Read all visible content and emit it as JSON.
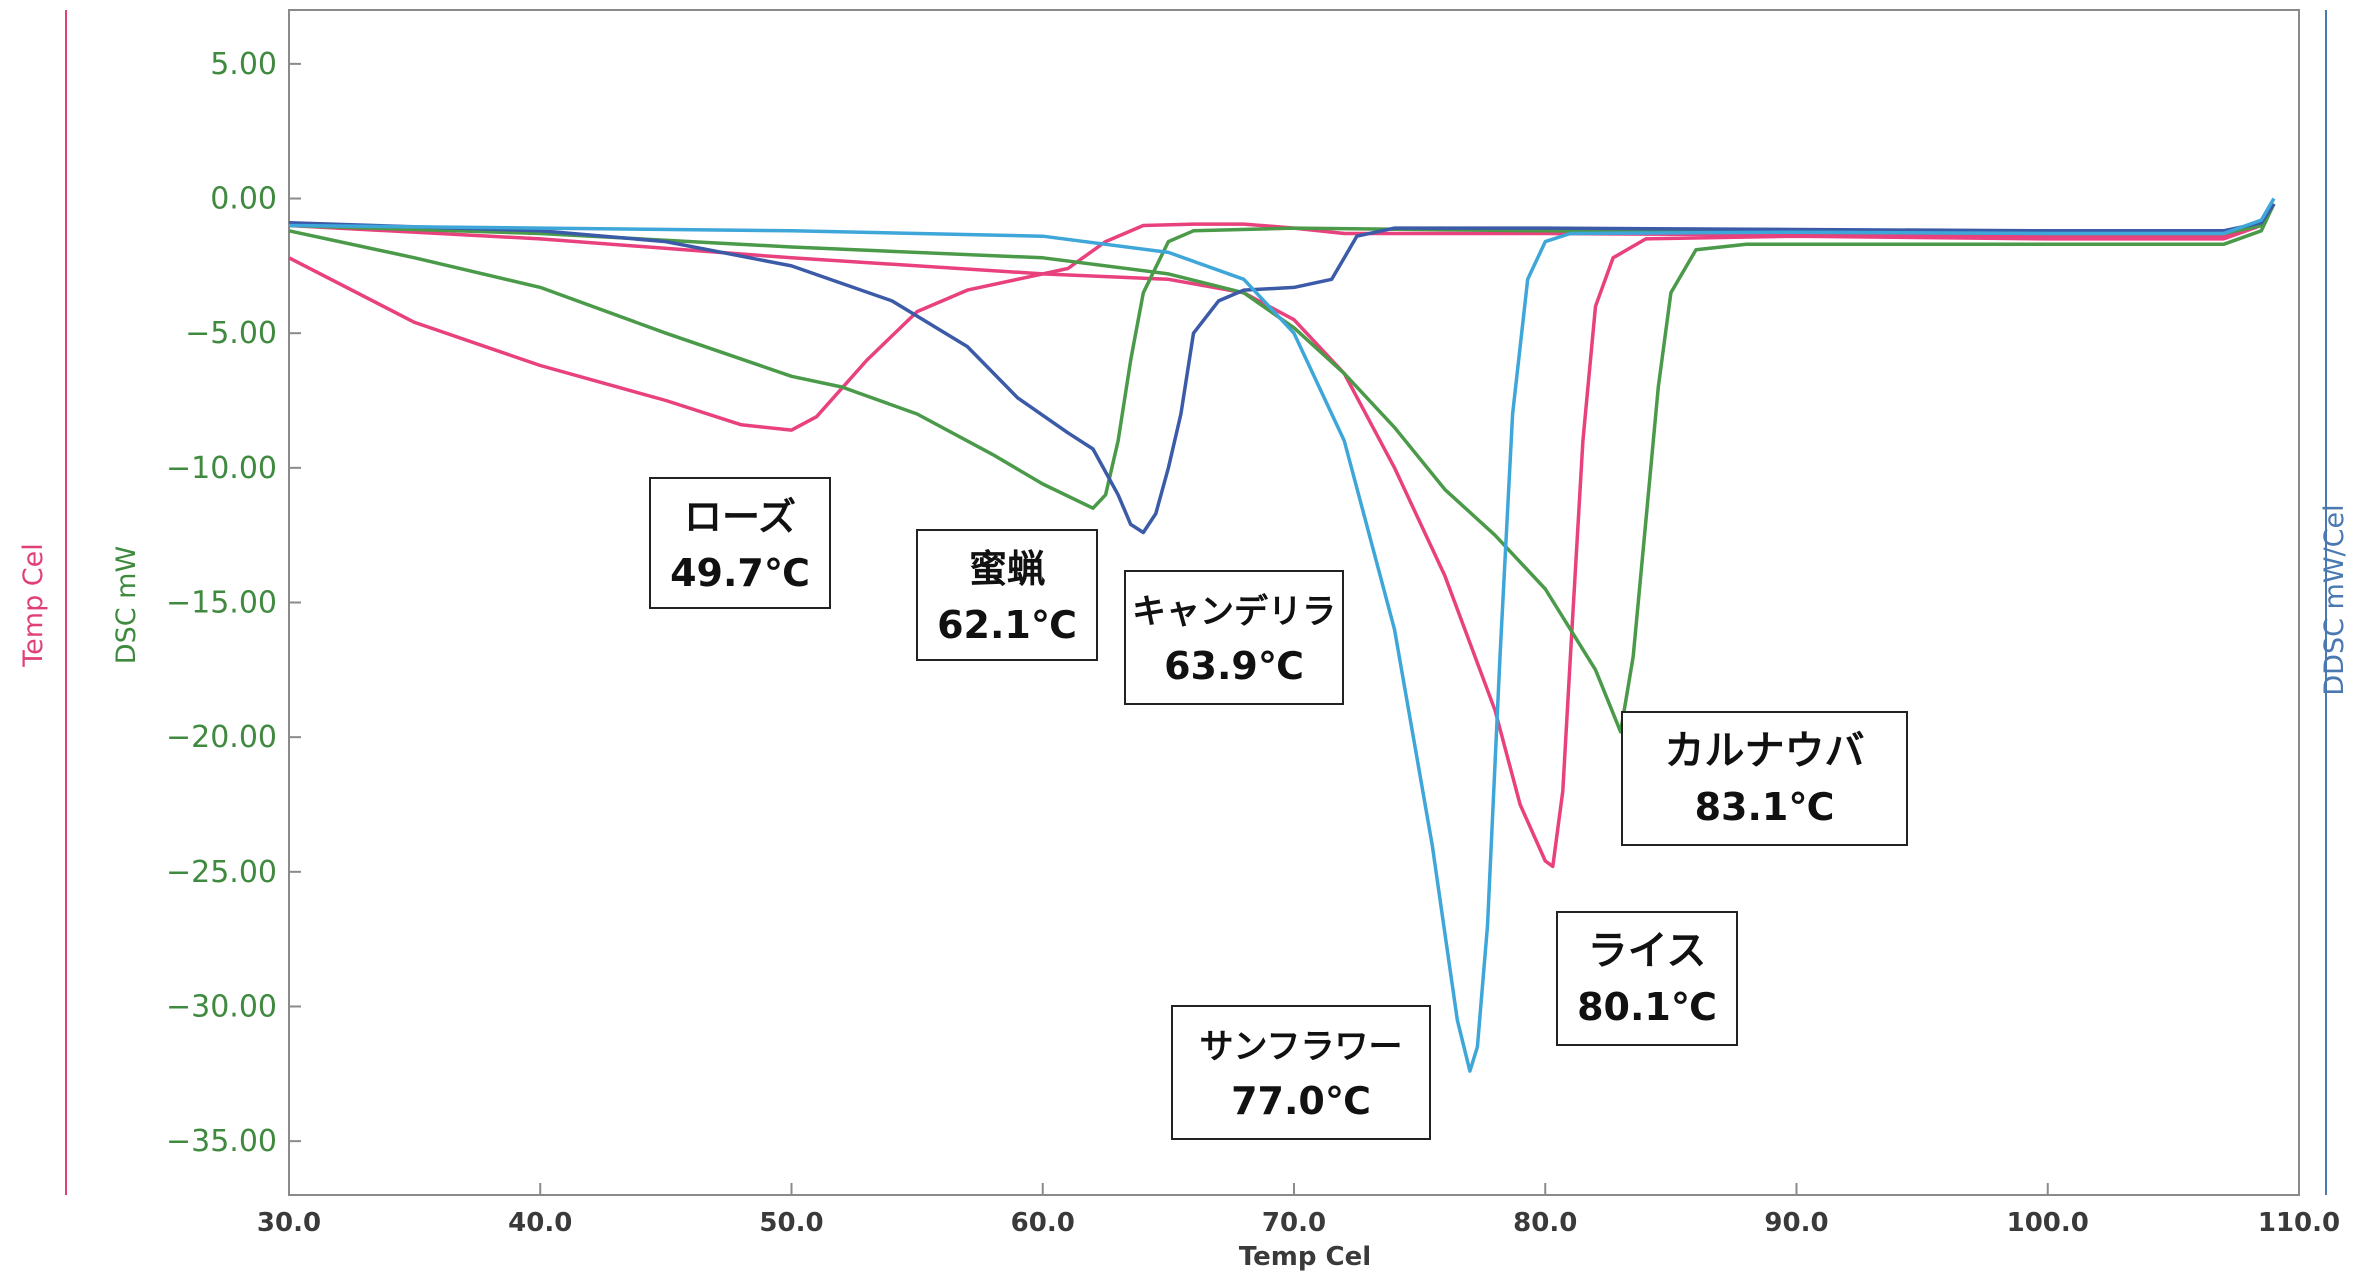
{
  "chart_data": {
    "type": "line",
    "xlabel": "Temp Cel",
    "ylabel_left_outer": "Temp Cel",
    "ylabel_left": "DSC mW",
    "ylabel_right": "DDSC mW/Cel",
    "xlim": [
      30,
      110
    ],
    "ylim": [
      -37,
      7
    ],
    "x_ticks": [
      "30.0",
      "40.0",
      "50.0",
      "60.0",
      "70.0",
      "80.0",
      "90.0",
      "100.0",
      "110.0"
    ],
    "y_ticks": [
      "5.00",
      "0.00",
      "-5.00",
      "-10.00",
      "-15.00",
      "-20.00",
      "-25.00",
      "-30.00",
      "-35.00"
    ],
    "grid": false,
    "legend": "none",
    "colors": {
      "ylabel_left_outer": "#e0407a",
      "ylabel_left": "#3f8a3f",
      "ylabel_right": "#4a78b0"
    },
    "series": [
      {
        "color": "#e8417d",
        "points": [
          [
            30,
            -2.2
          ],
          [
            35,
            -4.6
          ],
          [
            40,
            -6.2
          ],
          [
            45,
            -7.5
          ],
          [
            48,
            -8.4
          ],
          [
            50,
            -8.6
          ],
          [
            51,
            -8.1
          ],
          [
            53,
            -6.0
          ],
          [
            55,
            -4.2
          ],
          [
            57,
            -3.4
          ],
          [
            59,
            -3.0
          ],
          [
            61,
            -2.6
          ],
          [
            62.5,
            -1.6
          ],
          [
            64,
            -1.0
          ],
          [
            66,
            -0.95
          ],
          [
            68,
            -0.95
          ],
          [
            70,
            -1.1
          ],
          [
            72,
            -1.3
          ],
          [
            80,
            -1.3
          ],
          [
            90,
            -1.35
          ],
          [
            100,
            -1.4
          ],
          [
            107,
            -1.4
          ],
          [
            108.5,
            -1.0
          ],
          [
            109,
            -0.2
          ]
        ]
      },
      {
        "color": "#e8417d",
        "points": [
          [
            30,
            -1.0
          ],
          [
            40,
            -1.5
          ],
          [
            50,
            -2.2
          ],
          [
            60,
            -2.8
          ],
          [
            65,
            -3.0
          ],
          [
            68,
            -3.5
          ],
          [
            70,
            -4.5
          ],
          [
            72,
            -6.5
          ],
          [
            74,
            -10.0
          ],
          [
            76,
            -14.0
          ],
          [
            78,
            -19.0
          ],
          [
            79,
            -22.5
          ],
          [
            80,
            -24.6
          ],
          [
            80.3,
            -24.8
          ],
          [
            80.7,
            -22.0
          ],
          [
            81,
            -17.0
          ],
          [
            81.5,
            -9.0
          ],
          [
            82,
            -4.0
          ],
          [
            82.7,
            -2.2
          ],
          [
            84,
            -1.5
          ],
          [
            90,
            -1.4
          ],
          [
            100,
            -1.5
          ],
          [
            107,
            -1.5
          ],
          [
            108.5,
            -1.0
          ],
          [
            109,
            -0.2
          ]
        ]
      },
      {
        "color": "#4a9a4a",
        "points": [
          [
            30,
            -1.2
          ],
          [
            35,
            -2.2
          ],
          [
            40,
            -3.3
          ],
          [
            45,
            -5.0
          ],
          [
            50,
            -6.6
          ],
          [
            52,
            -7.0
          ],
          [
            55,
            -8.0
          ],
          [
            58,
            -9.5
          ],
          [
            60,
            -10.6
          ],
          [
            62,
            -11.5
          ],
          [
            62.5,
            -11.0
          ],
          [
            63,
            -9.0
          ],
          [
            63.5,
            -6.0
          ],
          [
            64,
            -3.5
          ],
          [
            65,
            -1.6
          ],
          [
            66,
            -1.2
          ],
          [
            70,
            -1.1
          ],
          [
            80,
            -1.2
          ],
          [
            90,
            -1.25
          ],
          [
            100,
            -1.3
          ],
          [
            107,
            -1.3
          ],
          [
            108.5,
            -1.0
          ],
          [
            109,
            -0.2
          ]
        ]
      },
      {
        "color": "#4a9a4a",
        "points": [
          [
            30,
            -1.0
          ],
          [
            40,
            -1.3
          ],
          [
            50,
            -1.8
          ],
          [
            60,
            -2.2
          ],
          [
            65,
            -2.8
          ],
          [
            68,
            -3.5
          ],
          [
            70,
            -4.8
          ],
          [
            72,
            -6.5
          ],
          [
            74,
            -8.5
          ],
          [
            76,
            -10.8
          ],
          [
            78,
            -12.5
          ],
          [
            80,
            -14.5
          ],
          [
            82,
            -17.5
          ],
          [
            83,
            -19.8
          ],
          [
            83.5,
            -17.0
          ],
          [
            84,
            -12.0
          ],
          [
            84.5,
            -7.0
          ],
          [
            85,
            -3.5
          ],
          [
            86,
            -1.9
          ],
          [
            88,
            -1.7
          ],
          [
            95,
            -1.7
          ],
          [
            100,
            -1.7
          ],
          [
            107,
            -1.7
          ],
          [
            108.5,
            -1.2
          ],
          [
            109,
            -0.2
          ]
        ]
      },
      {
        "color": "#3b5aa8",
        "points": [
          [
            30,
            -0.9
          ],
          [
            40,
            -1.2
          ],
          [
            45,
            -1.6
          ],
          [
            50,
            -2.5
          ],
          [
            54,
            -3.8
          ],
          [
            57,
            -5.5
          ],
          [
            59,
            -7.4
          ],
          [
            61,
            -8.7
          ],
          [
            62,
            -9.3
          ],
          [
            63,
            -11.0
          ],
          [
            63.5,
            -12.1
          ],
          [
            64,
            -12.4
          ],
          [
            64.5,
            -11.7
          ],
          [
            65,
            -10.0
          ],
          [
            65.5,
            -8.0
          ],
          [
            66,
            -5.0
          ],
          [
            67,
            -3.8
          ],
          [
            68,
            -3.4
          ],
          [
            70,
            -3.3
          ],
          [
            71.5,
            -3.0
          ],
          [
            72,
            -2.2
          ],
          [
            72.5,
            -1.4
          ],
          [
            74,
            -1.1
          ],
          [
            80,
            -1.1
          ],
          [
            90,
            -1.15
          ],
          [
            100,
            -1.2
          ],
          [
            107,
            -1.2
          ],
          [
            108.5,
            -0.9
          ],
          [
            109,
            -0.2
          ]
        ]
      },
      {
        "color": "#3ea6d8",
        "points": [
          [
            30,
            -1.0
          ],
          [
            40,
            -1.1
          ],
          [
            50,
            -1.2
          ],
          [
            60,
            -1.4
          ],
          [
            65,
            -2.0
          ],
          [
            68,
            -3.0
          ],
          [
            70,
            -5.0
          ],
          [
            72,
            -9.0
          ],
          [
            74,
            -16.0
          ],
          [
            75.5,
            -24.0
          ],
          [
            76.5,
            -30.5
          ],
          [
            77,
            -32.4
          ],
          [
            77.3,
            -31.5
          ],
          [
            77.7,
            -27.0
          ],
          [
            78.2,
            -17.0
          ],
          [
            78.7,
            -8.0
          ],
          [
            79.3,
            -3.0
          ],
          [
            80,
            -1.6
          ],
          [
            81,
            -1.3
          ],
          [
            90,
            -1.25
          ],
          [
            100,
            -1.3
          ],
          [
            107,
            -1.3
          ],
          [
            108.5,
            -0.8
          ],
          [
            109,
            0.0
          ]
        ]
      }
    ],
    "annotations": [
      {
        "name": "ローズ",
        "temp": "49.7℃"
      },
      {
        "name": "蜜蝋",
        "temp": "62.1℃"
      },
      {
        "name": "キャンデリラ",
        "temp": "63.9℃"
      },
      {
        "name": "カルナウバ",
        "temp": "83.1℃"
      },
      {
        "name": "ライス",
        "temp": "80.1℃"
      },
      {
        "name": "サンフラワー",
        "temp": "77.0℃"
      }
    ]
  }
}
